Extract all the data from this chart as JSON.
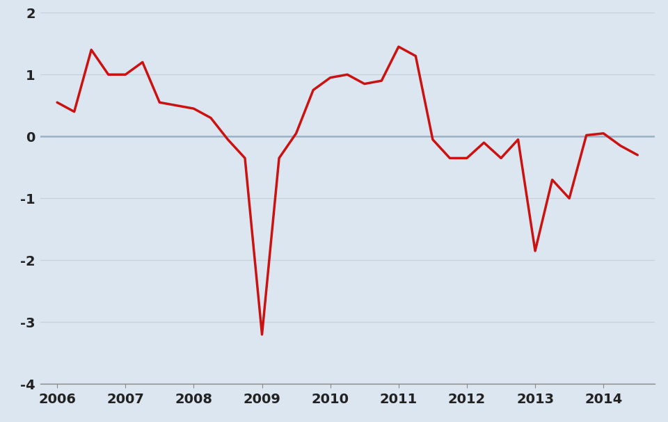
{
  "x": [
    2006.0,
    2006.25,
    2006.5,
    2006.75,
    2007.0,
    2007.25,
    2007.5,
    2007.75,
    2008.0,
    2008.25,
    2008.5,
    2008.75,
    2009.0,
    2009.25,
    2009.5,
    2009.75,
    2010.0,
    2010.25,
    2010.5,
    2010.75,
    2011.0,
    2011.25,
    2011.5,
    2011.75,
    2012.0,
    2012.25,
    2012.5,
    2012.75,
    2013.0,
    2013.25,
    2013.5,
    2013.75,
    2014.0,
    2014.25,
    2014.5
  ],
  "y": [
    0.55,
    0.4,
    1.4,
    1.0,
    1.0,
    1.2,
    0.55,
    0.5,
    0.45,
    0.3,
    -0.05,
    -0.35,
    -3.2,
    -0.35,
    0.05,
    0.75,
    0.95,
    1.0,
    0.85,
    0.9,
    1.45,
    1.3,
    -0.05,
    -0.35,
    -0.35,
    -0.1,
    -0.35,
    -0.05,
    -1.85,
    -0.7,
    -1.0,
    0.02,
    0.05,
    -0.15,
    -0.3
  ],
  "line_color": "#cc1111",
  "zero_line_color": "#9ab0c4",
  "background_color": "#dce6f0",
  "xlim": [
    2005.75,
    2014.75
  ],
  "ylim": [
    -4.0,
    2.0
  ],
  "yticks": [
    -4,
    -3,
    -2,
    -1,
    0,
    1,
    2
  ],
  "xticks": [
    2006,
    2007,
    2008,
    2009,
    2010,
    2011,
    2012,
    2013,
    2014
  ],
  "grid_color": "#c5d0dc",
  "line_width": 2.5,
  "tick_fontsize": 14,
  "tick_fontweight": "bold"
}
